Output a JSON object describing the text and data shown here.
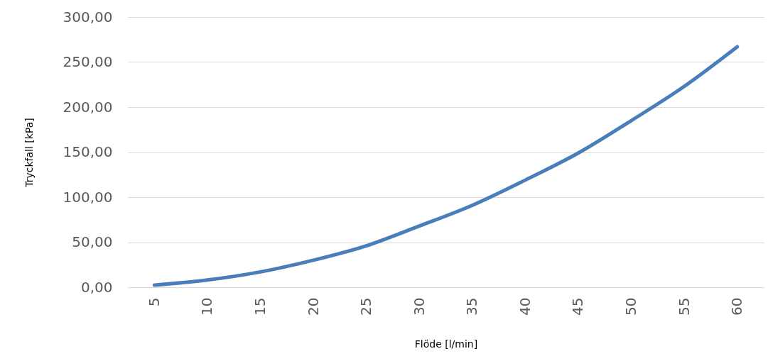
{
  "chart_data": {
    "type": "line",
    "xlabel": "Flöde [l/min]",
    "ylabel": "Tryckfall [kPa]",
    "categories": [
      "5",
      "10",
      "15",
      "20",
      "25",
      "30",
      "35",
      "40",
      "45",
      "50",
      "55",
      "60"
    ],
    "series": [
      {
        "color": "#4a7ebb",
        "values": [
          2.4,
          8,
          17,
          30,
          46,
          68,
          91,
          119,
          149,
          185,
          223,
          267
        ]
      }
    ],
    "ylim": [
      0,
      300
    ],
    "yticks": [
      {
        "value": 0,
        "label": "0,00"
      },
      {
        "value": 50,
        "label": "50,00"
      },
      {
        "value": 100,
        "label": "100,00"
      },
      {
        "value": 150,
        "label": "150,00"
      },
      {
        "value": 200,
        "label": "200,00"
      },
      {
        "value": 250,
        "label": "250,00"
      },
      {
        "value": 300,
        "label": "300,00"
      }
    ],
    "grid": "y"
  }
}
